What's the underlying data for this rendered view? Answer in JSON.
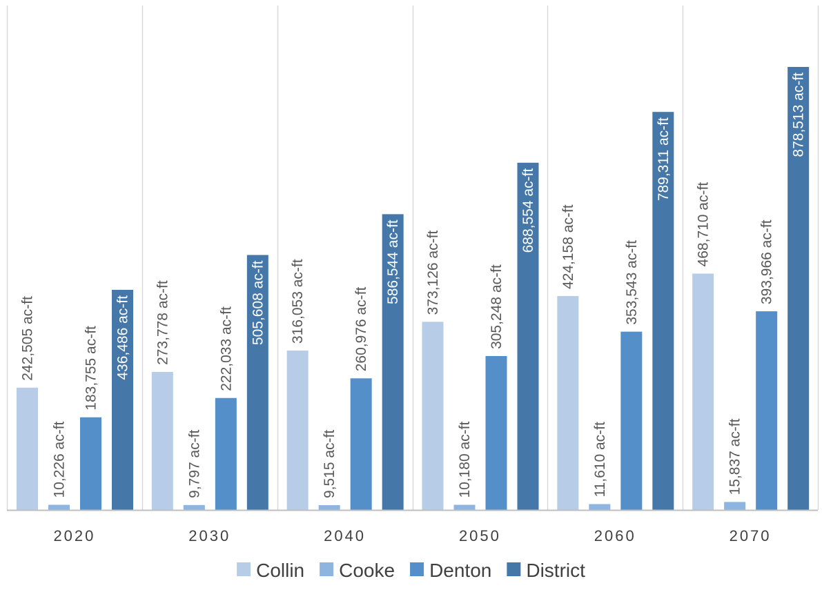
{
  "chart_data": {
    "type": "bar",
    "title": "",
    "xlabel": "",
    "ylabel": "",
    "ylim": [
      0,
      900000
    ],
    "grid": "vertical separators between categories",
    "legend_position": "bottom",
    "categories": [
      "2020",
      "2030",
      "2040",
      "2050",
      "2060",
      "2070"
    ],
    "series": [
      {
        "name": "Collin",
        "color": "#B7CDE7",
        "values": [
          242505,
          273778,
          316053,
          373126,
          424158,
          468710
        ],
        "labels": [
          "242,505 ac-ft",
          "273,778 ac-ft",
          "316,053 ac-ft",
          "373,126 ac-ft",
          "424,158 ac-ft",
          "468,710 ac-ft"
        ]
      },
      {
        "name": "Cooke",
        "color": "#8EB4E0",
        "values": [
          10226,
          9797,
          9515,
          10180,
          11610,
          15837
        ],
        "labels": [
          "10,226 ac-ft",
          "9,797 ac-ft",
          "9,515 ac-ft",
          "10,180 ac-ft",
          "11,610 ac-ft",
          "15,837 ac-ft"
        ]
      },
      {
        "name": "Denton",
        "color": "#548FCA",
        "values": [
          183755,
          222033,
          260976,
          305248,
          353543,
          393966
        ],
        "labels": [
          "183,755 ac-ft",
          "222,033 ac-ft",
          "260,976 ac-ft",
          "305,248 ac-ft",
          "353,543 ac-ft",
          "393,966 ac-ft"
        ]
      },
      {
        "name": "District",
        "color": "#4578A8",
        "values": [
          436486,
          505608,
          586544,
          688554,
          789311,
          878513
        ],
        "labels": [
          "436,486 ac-ft",
          "505,608 ac-ft",
          "586,544 ac-ft",
          "688,554 ac-ft",
          "789,311 ac-ft",
          "878,513 ac-ft"
        ]
      }
    ]
  },
  "colors": {
    "axis": "#BFBFBF",
    "separator": "#D9D9D9",
    "label_dark": "#595959",
    "label_on_bar": "#FFFFFF",
    "tick_text": "#404040"
  }
}
